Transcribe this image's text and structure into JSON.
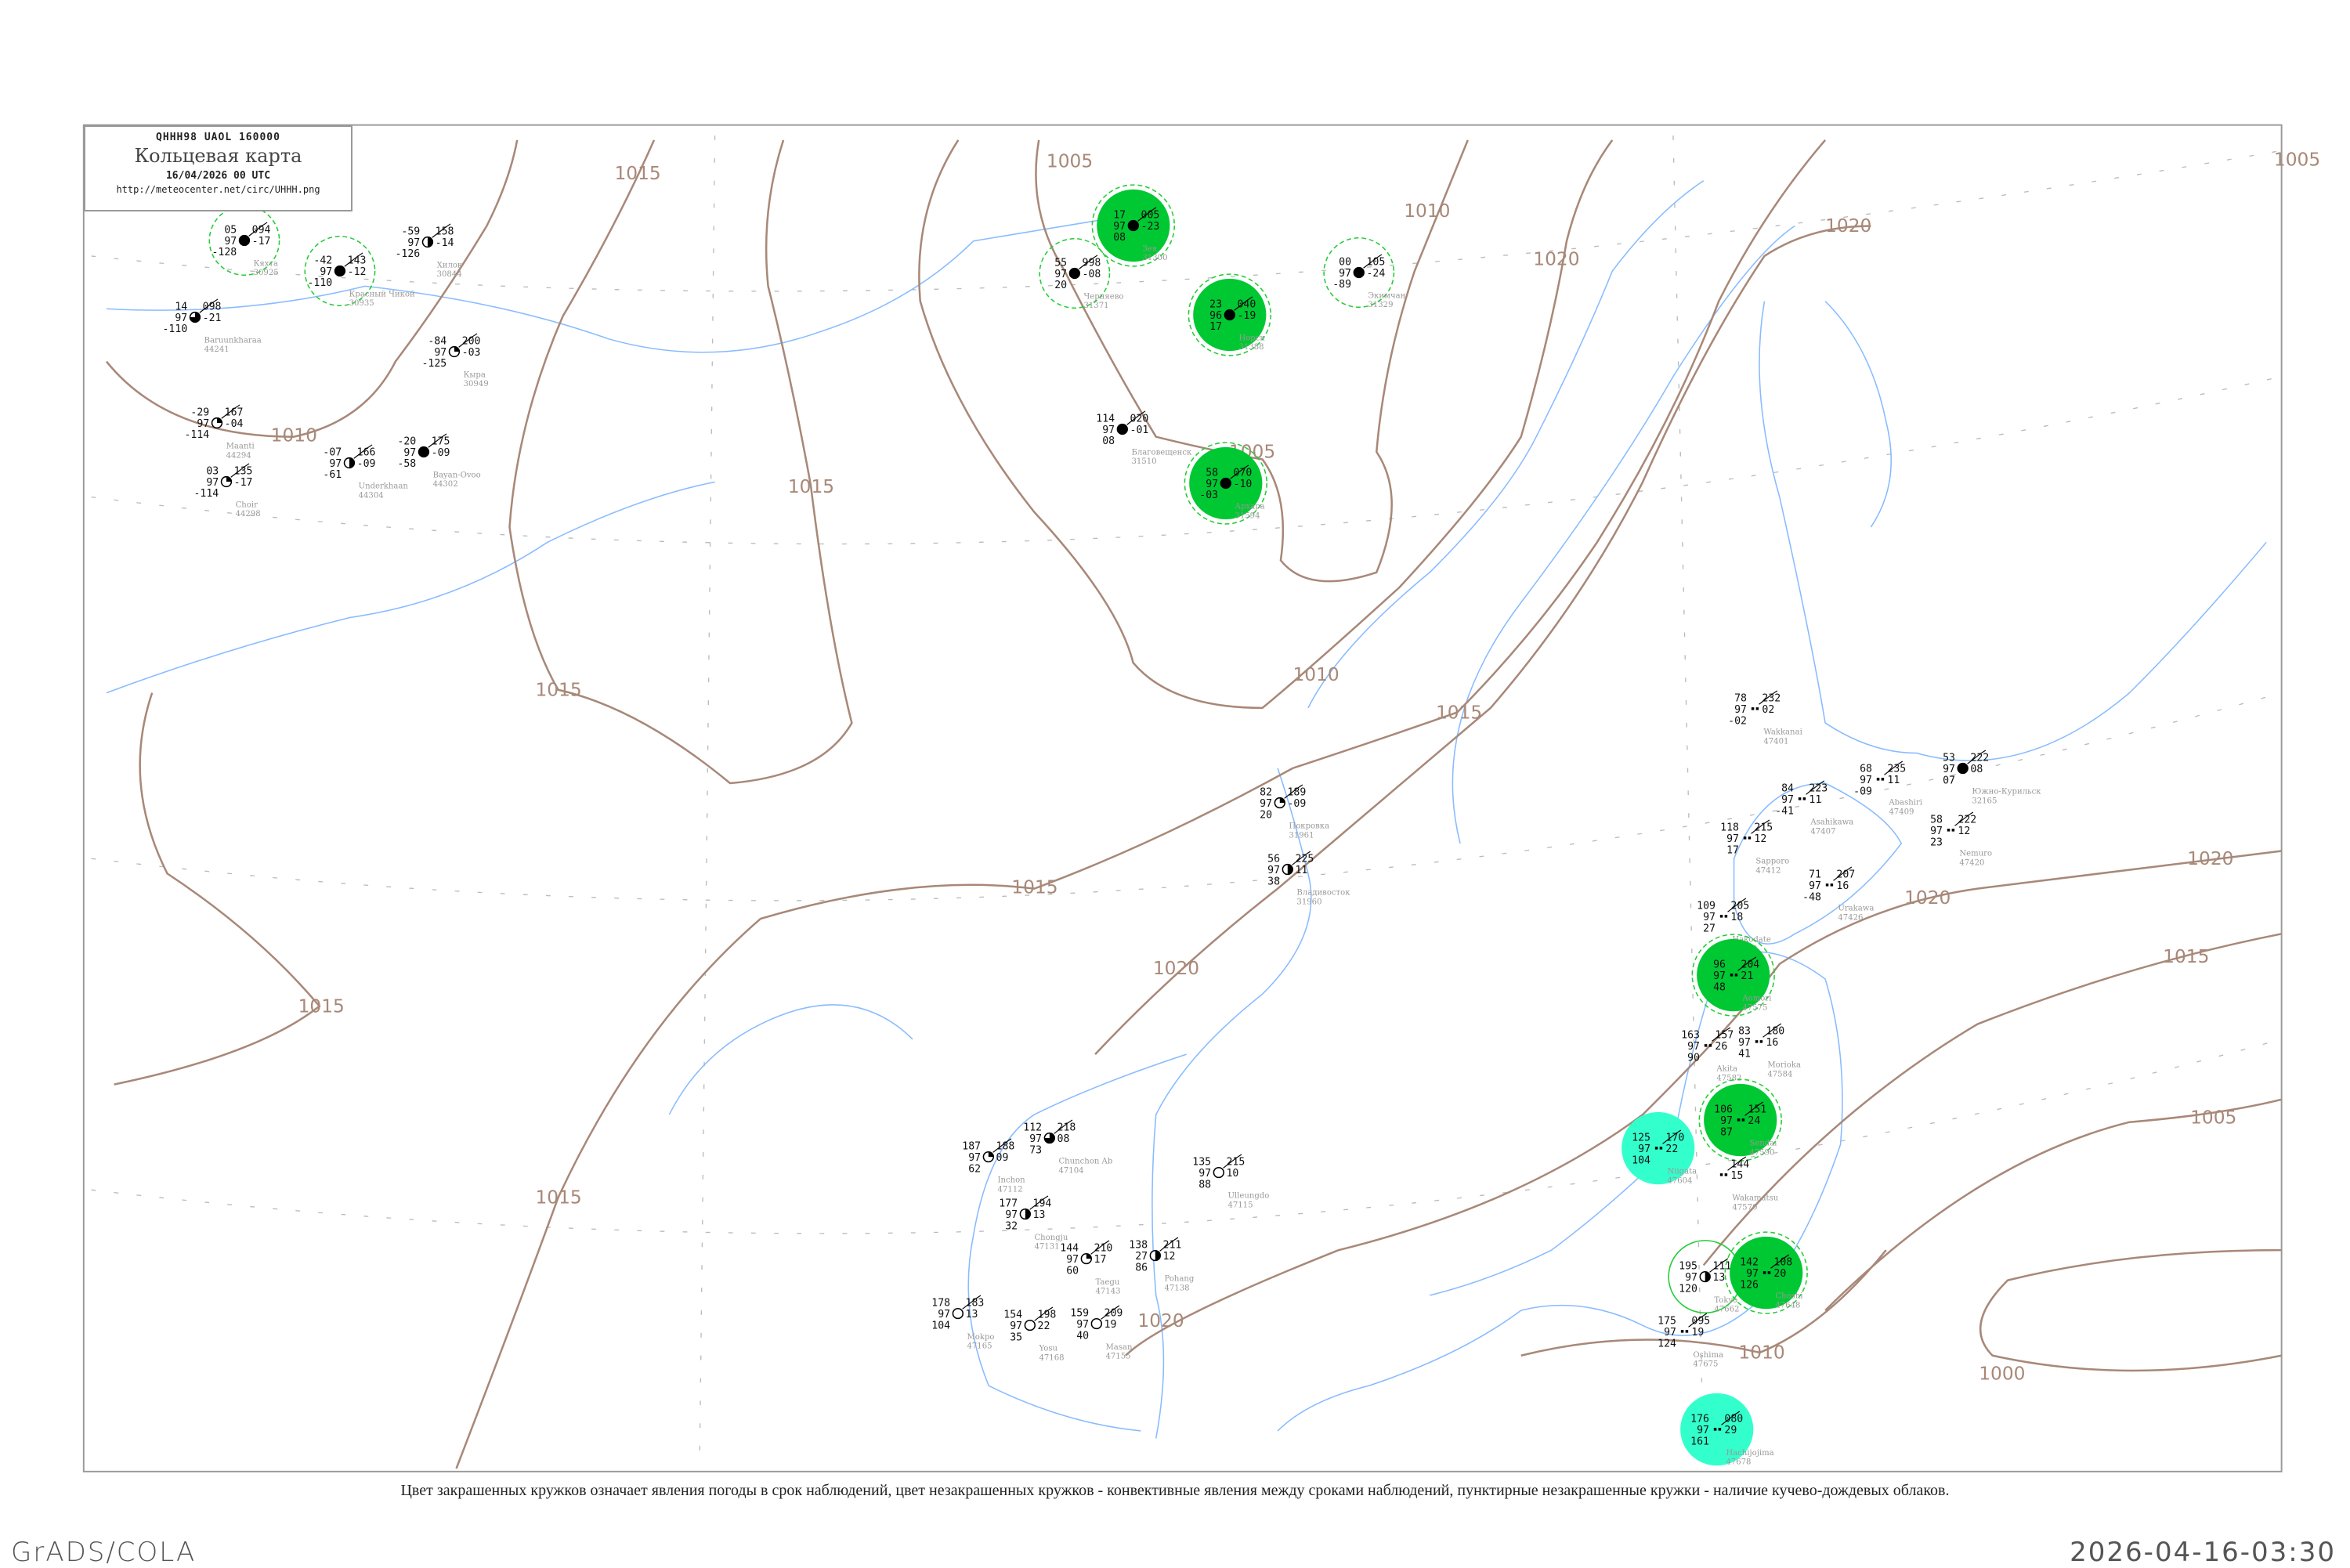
{
  "header": {
    "bulletin": "QHHH98  UAOL  160000",
    "title": "Кольцевая карта",
    "datetime": "16/04/2026 00 UTC",
    "url": "http://meteocenter.net/circ/UHHH.png"
  },
  "caption": "Цвет закрашенных кружков означает явления погоды в срок наблюдений, цвет незакрашенных кружков - конвективные явления между сроками наблюдений, пунктирные незакрашенные кружки - наличие кучево-дождевых облаков.",
  "footer": {
    "software": "GrADS/COLA",
    "timestamp": "2026-04-16-03:30"
  },
  "colors": {
    "isobar": "#a88878",
    "coastline": "#88bbff",
    "weather_green": "#00c832",
    "weather_cyan": "#33ffcc",
    "cb_dashed": "#22cc33"
  },
  "isobars": [
    {
      "value": "1005",
      "labels": [
        "1005",
        "1005",
        "1005",
        "1005"
      ]
    },
    {
      "value": "1010",
      "labels": [
        "1010",
        "1010",
        "1010",
        "1010"
      ]
    },
    {
      "value": "1015",
      "labels": [
        "1015",
        "1015",
        "1015",
        "1015",
        "1015",
        "1015",
        "1015",
        "1015"
      ]
    },
    {
      "value": "1020",
      "labels": [
        "1020",
        "1020",
        "1020",
        "1020",
        "1020",
        "1020"
      ]
    },
    {
      "value": "1000",
      "labels": [
        "1000"
      ]
    }
  ],
  "stations": [
    {
      "name": "Кяхта",
      "id": "30925",
      "t": "05",
      "p": "094",
      "v": "97",
      "tend": "-17",
      "td": "-128",
      "cloud": 8,
      "mark": "dashed"
    },
    {
      "name": "Красный Чикой",
      "id": "30935",
      "t": "-42",
      "p": "143",
      "v": "97",
      "tend": "-12",
      "td": "-110",
      "cloud": 8,
      "mark": "dashed"
    },
    {
      "name": "Хилок",
      "id": "30844",
      "t": "-59",
      "p": "158",
      "v": "97",
      "tend": "-14",
      "td": "-126",
      "cloud": 4,
      "mark": ""
    },
    {
      "name": "Baruunkharaa",
      "id": "44241",
      "t": "14",
      "p": "098",
      "v": "97",
      "tend": "-21",
      "td": "-110",
      "cloud": 6,
      "mark": ""
    },
    {
      "name": "Maanti",
      "id": "44294",
      "t": "-29",
      "p": "167",
      "v": "97",
      "tend": "-04",
      "td": "-114",
      "cloud": 2,
      "mark": ""
    },
    {
      "name": "Choir",
      "id": "44298",
      "t": "03",
      "p": "135",
      "v": "97",
      "tend": "-17",
      "td": "-114",
      "cloud": 2,
      "mark": ""
    },
    {
      "name": "Underkhaan",
      "id": "44304",
      "t": "-07",
      "p": "166",
      "v": "97",
      "tend": "-09",
      "td": "-61",
      "cloud": 4,
      "mark": ""
    },
    {
      "name": "Bayan-Ovoo",
      "id": "44302",
      "t": "-20",
      "p": "175",
      "v": "97",
      "tend": "-09",
      "td": "-58",
      "cloud": 8,
      "mark": ""
    },
    {
      "name": "Кыра",
      "id": "30949",
      "t": "-84",
      "p": "200",
      "v": "97",
      "tend": "-03",
      "td": "-125",
      "cloud": 2,
      "mark": ""
    },
    {
      "name": "Зея",
      "id": "31300",
      "t": "17",
      "p": "005",
      "v": "97",
      "tend": "-23",
      "td": "08",
      "cloud": 8,
      "mark": "green"
    },
    {
      "name": "Черняево",
      "id": "31371",
      "t": "55",
      "p": "998",
      "v": "97",
      "tend": "-08",
      "td": "20",
      "cloud": 8,
      "mark": "dashed"
    },
    {
      "name": "Норск",
      "id": "31388",
      "t": "23",
      "p": "040",
      "v": "96",
      "tend": "-19",
      "td": "17",
      "cloud": 8,
      "mark": "green"
    },
    {
      "name": "Экимчан",
      "id": "31329",
      "t": "00",
      "p": "105",
      "v": "97",
      "tend": "-24",
      "td": "-89",
      "cloud": 8,
      "mark": "dashed"
    },
    {
      "name": "Благовещенск",
      "id": "31510",
      "t": "114",
      "p": "020",
      "v": "97",
      "tend": "-01",
      "td": "08",
      "cloud": 8,
      "mark": ""
    },
    {
      "name": "Архара",
      "id": "31594",
      "t": "58",
      "p": "070",
      "v": "97",
      "tend": "-10",
      "td": "-03",
      "cloud": 8,
      "mark": "green"
    },
    {
      "name": "Покровка",
      "id": "31961",
      "t": "82",
      "p": "189",
      "v": "97",
      "tend": "-09",
      "td": "20",
      "cloud": 2,
      "mark": ""
    },
    {
      "name": "Владивосток",
      "id": "31960",
      "t": "56",
      "p": "225",
      "v": "97",
      "tend": "11",
      "td": "38",
      "cloud": 4,
      "mark": ""
    },
    {
      "name": "Wakkanai",
      "id": "47401",
      "t": "78",
      "p": "232",
      "v": "97",
      "tend": "02",
      "td": "-02",
      "cloud": -1,
      "mark": ""
    },
    {
      "name": "Asahikawa",
      "id": "47407",
      "t": "84",
      "p": "223",
      "v": "97",
      "tend": "11",
      "td": "-41",
      "cloud": -1,
      "mark": ""
    },
    {
      "name": "Abashiri",
      "id": "47409",
      "t": "68",
      "p": "235",
      "v": "97",
      "tend": "11",
      "td": "-09",
      "cloud": -1,
      "mark": ""
    },
    {
      "name": "Южно-Курильск",
      "id": "32165",
      "t": "53",
      "p": "222",
      "v": "97",
      "tend": "08",
      "td": "07",
      "cloud": 8,
      "mark": ""
    },
    {
      "name": "Nemuro",
      "id": "47420",
      "t": "58",
      "p": "222",
      "v": "97",
      "tend": "12",
      "td": "23",
      "cloud": -1,
      "mark": ""
    },
    {
      "name": "Sapporo",
      "id": "47412",
      "t": "118",
      "p": "215",
      "v": "97",
      "tend": "12",
      "td": "17",
      "cloud": -1,
      "mark": ""
    },
    {
      "name": "Urakawa",
      "id": "47426",
      "t": "71",
      "p": "207",
      "v": "97",
      "tend": "16",
      "td": "-48",
      "cloud": -1,
      "mark": ""
    },
    {
      "name": "Hakodate",
      "id": "47430",
      "t": "109",
      "p": "205",
      "v": "97",
      "tend": "18",
      "td": "27",
      "cloud": -1,
      "mark": ""
    },
    {
      "name": "Aomori",
      "id": "47575",
      "t": "96",
      "p": "204",
      "v": "97",
      "tend": "21",
      "td": "48",
      "cloud": -1,
      "mark": "green"
    },
    {
      "name": "Akita",
      "id": "47582",
      "t": "163",
      "p": "157",
      "v": "97",
      "tend": "26",
      "td": "90",
      "cloud": -1,
      "mark": ""
    },
    {
      "name": "Morioka",
      "id": "47584",
      "t": "83",
      "p": "180",
      "v": "97",
      "tend": "16",
      "td": "41",
      "cloud": -1,
      "mark": ""
    },
    {
      "name": "Sendai",
      "id": "47590",
      "t": "106",
      "p": "151",
      "v": "97",
      "tend": "24",
      "td": "87",
      "cloud": -1,
      "mark": "green"
    },
    {
      "name": "Niigata",
      "id": "47604",
      "t": "125",
      "p": "170",
      "v": "97",
      "tend": "22",
      "td": "104",
      "cloud": -1,
      "mark": "cyan"
    },
    {
      "name": "Wakamatsu",
      "id": "47570",
      "t": "",
      "p": "144",
      "v": "",
      "tend": "15",
      "td": "",
      "cloud": -1,
      "mark": ""
    },
    {
      "name": "Tokyo",
      "id": "47662",
      "t": "195",
      "p": "111",
      "v": "97",
      "tend": "13",
      "td": "120",
      "cloud": 4,
      "mark": "ring"
    },
    {
      "name": "Choshi",
      "id": "47648",
      "t": "142",
      "p": "108",
      "v": "97",
      "tend": "20",
      "td": "126",
      "cloud": -1,
      "mark": "green"
    },
    {
      "name": "Oshima",
      "id": "47675",
      "t": "175",
      "p": "095",
      "v": "97",
      "tend": "19",
      "td": "124",
      "cloud": -1,
      "mark": ""
    },
    {
      "name": "Hachijojima",
      "id": "47678",
      "t": "176",
      "p": "080",
      "v": "97",
      "tend": "29",
      "td": "161",
      "cloud": -1,
      "mark": "cyan"
    },
    {
      "name": "Chunchon Ab",
      "id": "47104",
      "t": "112",
      "p": "218",
      "v": "97",
      "tend": "08",
      "td": "73",
      "cloud": 6,
      "mark": ""
    },
    {
      "name": "Inchon",
      "id": "47112",
      "t": "187",
      "p": "188",
      "v": "97",
      "tend": "09",
      "td": "62",
      "cloud": 2,
      "mark": ""
    },
    {
      "name": "Chongju",
      "id": "47131",
      "t": "177",
      "p": "194",
      "v": "97",
      "tend": "13",
      "td": "32",
      "cloud": 4,
      "mark": ""
    },
    {
      "name": "Taegu",
      "id": "47143",
      "t": "144",
      "p": "210",
      "v": "97",
      "tend": "17",
      "td": "60",
      "cloud": 2,
      "mark": ""
    },
    {
      "name": "Pohang",
      "id": "47138",
      "t": "138",
      "p": "211",
      "v": "27",
      "tend": "12",
      "td": "86",
      "cloud": 4,
      "mark": ""
    },
    {
      "name": "Masan",
      "id": "47155",
      "t": "159",
      "p": "209",
      "v": "97",
      "tend": "19",
      "td": "40",
      "cloud": 0,
      "mark": ""
    },
    {
      "name": "Mokpo",
      "id": "47165",
      "t": "178",
      "p": "183",
      "v": "97",
      "tend": "13",
      "td": "104",
      "cloud": 0,
      "mark": ""
    },
    {
      "name": "Yosu",
      "id": "47168",
      "t": "154",
      "p": "198",
      "v": "97",
      "tend": "22",
      "td": "35",
      "cloud": 0,
      "mark": ""
    },
    {
      "name": "Ulleungdo",
      "id": "47115",
      "t": "135",
      "p": "215",
      "v": "97",
      "tend": "10",
      "td": "88",
      "cloud": 0,
      "mark": ""
    }
  ]
}
